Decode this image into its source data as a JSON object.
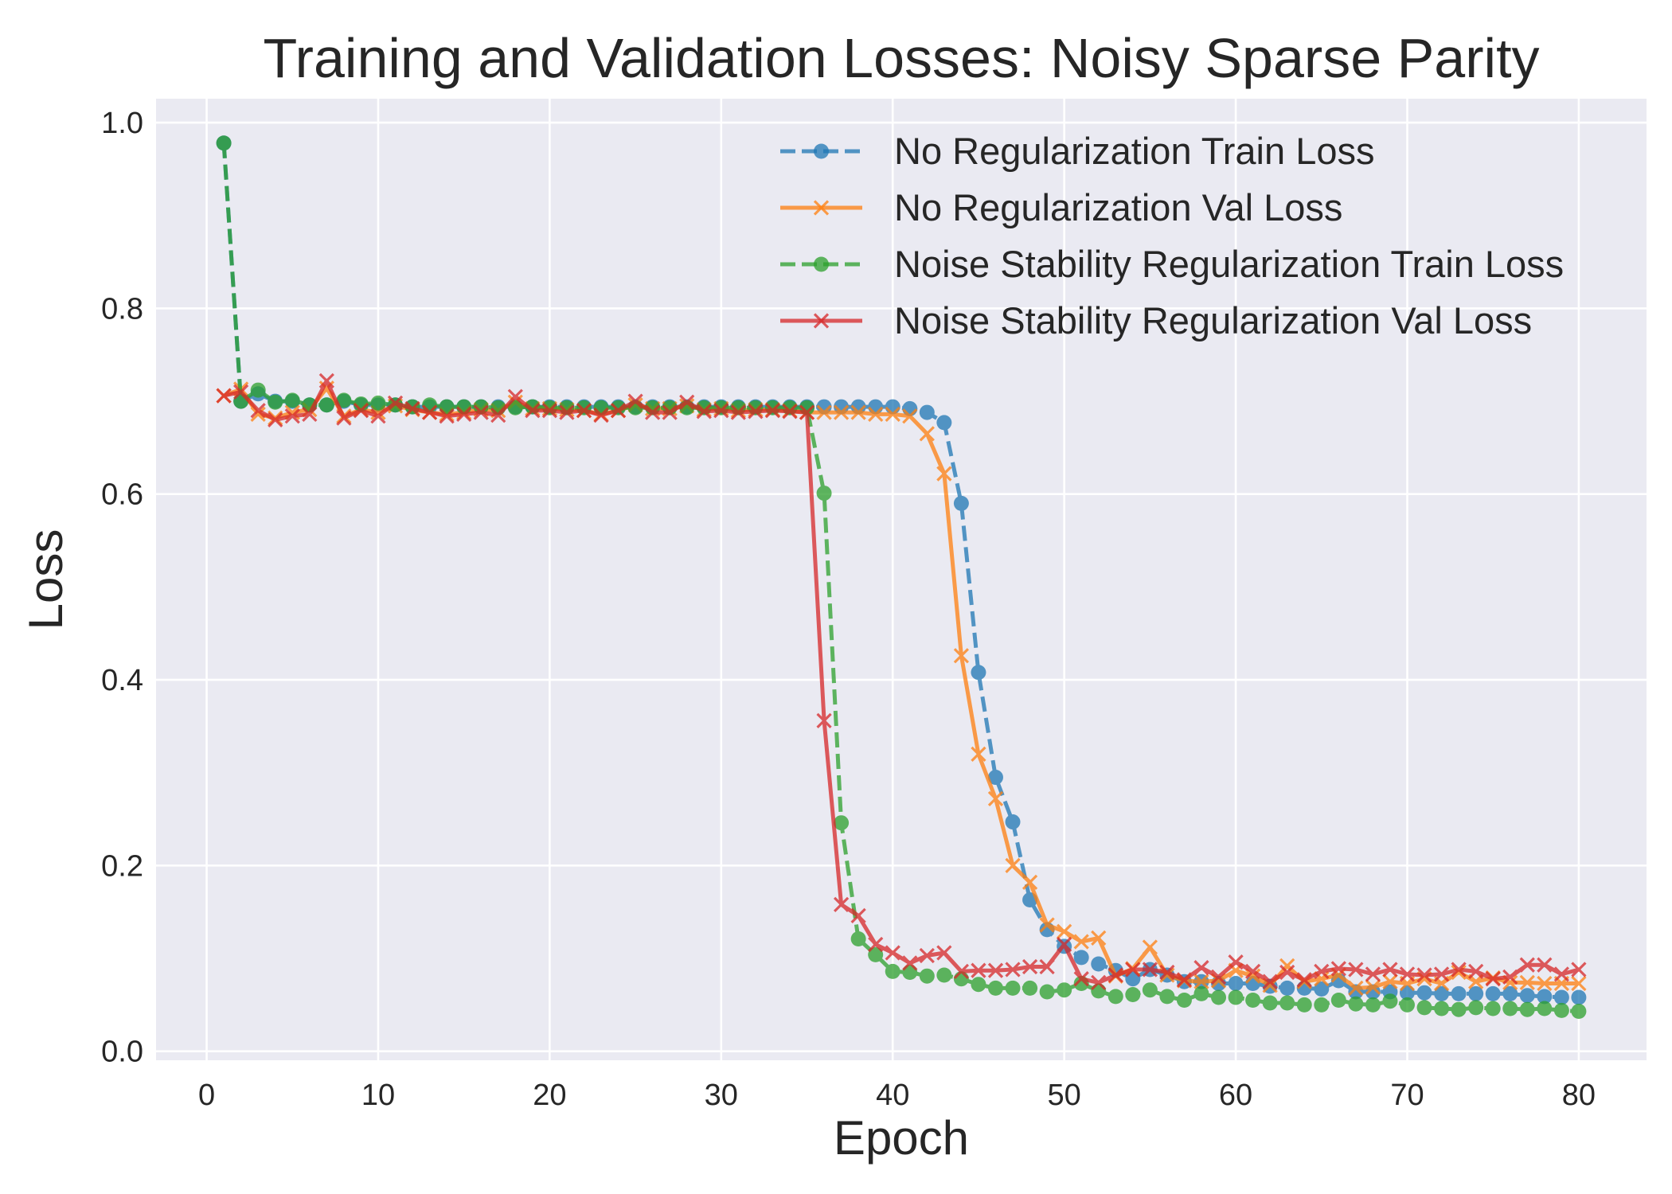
{
  "chart_data": {
    "type": "line",
    "title": "Training and Validation Losses: Noisy Sparse Parity",
    "xlabel": "Epoch",
    "ylabel": "Loss",
    "xlim": [
      -2.95,
      83.95
    ],
    "ylim": [
      -0.0097,
      1.0258
    ],
    "xticks": [
      0,
      10,
      20,
      30,
      40,
      50,
      60,
      70,
      80
    ],
    "yticks": [
      0.0,
      0.2,
      0.4,
      0.6,
      0.8,
      1.0
    ],
    "grid": true,
    "legend_position": "top-right",
    "x": [
      1,
      2,
      3,
      4,
      5,
      6,
      7,
      8,
      9,
      10,
      11,
      12,
      13,
      14,
      15,
      16,
      17,
      18,
      19,
      20,
      21,
      22,
      23,
      24,
      25,
      26,
      27,
      28,
      29,
      30,
      31,
      32,
      33,
      34,
      35,
      36,
      37,
      38,
      39,
      40,
      41,
      42,
      43,
      44,
      45,
      46,
      47,
      48,
      49,
      50,
      51,
      52,
      53,
      54,
      55,
      56,
      57,
      58,
      59,
      60,
      61,
      62,
      63,
      64,
      65,
      66,
      67,
      68,
      69,
      70,
      71,
      72,
      73,
      74,
      75,
      76,
      77,
      78,
      79,
      80
    ],
    "series": [
      {
        "name": "No Regularization Train Loss",
        "color": "#1f77b4",
        "line": "dashed",
        "marker": "circle",
        "values": [
          0.978,
          0.7,
          0.708,
          0.7,
          0.7,
          0.696,
          0.696,
          0.7,
          0.696,
          0.696,
          0.696,
          0.694,
          0.694,
          0.694,
          0.694,
          0.694,
          0.694,
          0.694,
          0.694,
          0.694,
          0.694,
          0.694,
          0.694,
          0.694,
          0.694,
          0.694,
          0.694,
          0.694,
          0.694,
          0.694,
          0.694,
          0.694,
          0.694,
          0.694,
          0.694,
          0.694,
          0.694,
          0.694,
          0.694,
          0.694,
          0.692,
          0.688,
          0.677,
          0.59,
          0.408,
          0.295,
          0.247,
          0.163,
          0.131,
          0.113,
          0.101,
          0.094,
          0.087,
          0.078,
          0.088,
          0.082,
          0.075,
          0.075,
          0.073,
          0.073,
          0.073,
          0.07,
          0.068,
          0.068,
          0.067,
          0.076,
          0.064,
          0.064,
          0.064,
          0.063,
          0.063,
          0.062,
          0.062,
          0.062,
          0.062,
          0.062,
          0.06,
          0.059,
          0.058,
          0.058
        ]
      },
      {
        "name": "No Regularization Val Loss",
        "color": "#ff7f0e",
        "line": "solid",
        "marker": "x",
        "values": [
          0.706,
          0.713,
          0.686,
          0.682,
          0.688,
          0.691,
          0.714,
          0.684,
          0.691,
          0.688,
          0.695,
          0.691,
          0.688,
          0.686,
          0.688,
          0.691,
          0.69,
          0.699,
          0.692,
          0.692,
          0.691,
          0.69,
          0.686,
          0.69,
          0.696,
          0.692,
          0.692,
          0.695,
          0.691,
          0.692,
          0.69,
          0.691,
          0.691,
          0.69,
          0.688,
          0.688,
          0.688,
          0.688,
          0.686,
          0.686,
          0.684,
          0.665,
          0.622,
          0.426,
          0.32,
          0.272,
          0.2,
          0.182,
          0.136,
          0.129,
          0.118,
          0.122,
          0.081,
          0.089,
          0.112,
          0.082,
          0.076,
          0.075,
          0.076,
          0.087,
          0.081,
          0.071,
          0.092,
          0.075,
          0.078,
          0.082,
          0.068,
          0.069,
          0.075,
          0.073,
          0.078,
          0.073,
          0.085,
          0.075,
          0.079,
          0.074,
          0.074,
          0.073,
          0.073,
          0.073
        ]
      },
      {
        "name": "Noise Stability Regularization Train Loss",
        "color": "#2ca02c",
        "line": "dashed",
        "marker": "circle",
        "values": [
          0.978,
          0.7,
          0.712,
          0.699,
          0.701,
          0.696,
          0.696,
          0.701,
          0.697,
          0.698,
          0.696,
          0.694,
          0.696,
          0.694,
          0.694,
          0.694,
          0.693,
          0.693,
          0.694,
          0.693,
          0.693,
          0.693,
          0.693,
          0.693,
          0.693,
          0.693,
          0.693,
          0.693,
          0.693,
          0.693,
          0.693,
          0.693,
          0.693,
          0.693,
          0.693,
          0.601,
          0.246,
          0.121,
          0.104,
          0.086,
          0.085,
          0.081,
          0.082,
          0.078,
          0.072,
          0.068,
          0.068,
          0.068,
          0.064,
          0.066,
          0.073,
          0.065,
          0.059,
          0.061,
          0.066,
          0.059,
          0.055,
          0.062,
          0.058,
          0.058,
          0.055,
          0.052,
          0.052,
          0.05,
          0.05,
          0.055,
          0.051,
          0.05,
          0.054,
          0.05,
          0.047,
          0.046,
          0.045,
          0.047,
          0.046,
          0.046,
          0.045,
          0.046,
          0.044,
          0.043
        ]
      },
      {
        "name": "Noise Stability Regularization Val Loss",
        "color": "#d62728",
        "line": "solid",
        "marker": "x",
        "values": [
          0.706,
          0.71,
          0.69,
          0.68,
          0.684,
          0.686,
          0.722,
          0.682,
          0.69,
          0.684,
          0.698,
          0.692,
          0.688,
          0.684,
          0.686,
          0.688,
          0.685,
          0.705,
          0.69,
          0.69,
          0.688,
          0.69,
          0.685,
          0.69,
          0.7,
          0.688,
          0.688,
          0.699,
          0.689,
          0.69,
          0.688,
          0.689,
          0.69,
          0.689,
          0.688,
          0.356,
          0.158,
          0.146,
          0.115,
          0.106,
          0.095,
          0.103,
          0.106,
          0.086,
          0.087,
          0.087,
          0.088,
          0.091,
          0.091,
          0.115,
          0.078,
          0.074,
          0.082,
          0.088,
          0.088,
          0.085,
          0.077,
          0.09,
          0.08,
          0.096,
          0.086,
          0.075,
          0.085,
          0.077,
          0.086,
          0.089,
          0.088,
          0.083,
          0.088,
          0.083,
          0.082,
          0.083,
          0.088,
          0.086,
          0.078,
          0.08,
          0.093,
          0.093,
          0.083,
          0.088
        ]
      }
    ]
  }
}
